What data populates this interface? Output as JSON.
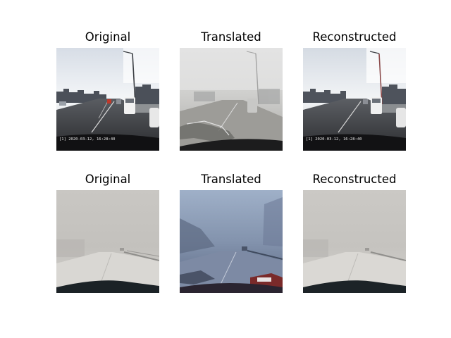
{
  "rows": [
    {
      "cells": [
        {
          "title": "Original",
          "caption": "city highway dashcam, clear weather",
          "overlay_text": "[1] 2020-03-12, 16:28:40"
        },
        {
          "title": "Translated",
          "caption": "city highway translated to foggy weather"
        },
        {
          "title": "Reconstructed",
          "caption": "city highway reconstructed",
          "overlay_text": "[1] 2020-03-12, 16:28:40"
        }
      ]
    },
    {
      "cells": [
        {
          "title": "Original",
          "caption": "snowy foggy highway dashcam"
        },
        {
          "title": "Translated",
          "caption": "snowy highway translated to clear weather"
        },
        {
          "title": "Reconstructed",
          "caption": "snowy highway reconstructed"
        }
      ]
    }
  ]
}
